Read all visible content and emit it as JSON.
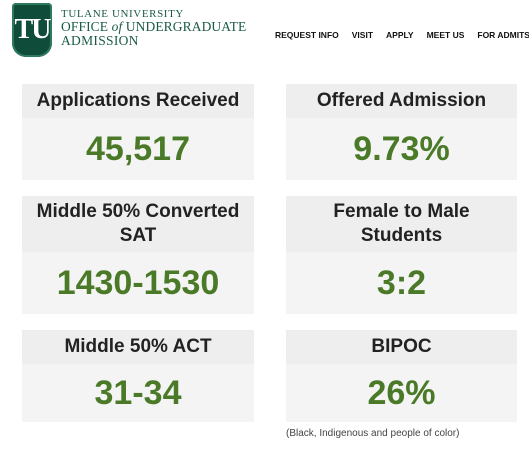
{
  "header": {
    "logo_monogram": "TU",
    "university": "TULANE UNIVERSITY",
    "office_prefix": "OFFICE ",
    "office_of": "of",
    "office_suffix": " UNDERGRADUATE",
    "admission": "ADMISSION"
  },
  "nav": {
    "items": [
      "REQUEST INFO",
      "VISIT",
      "APPLY",
      "MEET US",
      "FOR ADMITS"
    ]
  },
  "stats": [
    {
      "title": "Applications Received",
      "value": "45,517"
    },
    {
      "title": "Offered Admission",
      "value": "9.73%"
    },
    {
      "title": "Middle 50% Converted SAT",
      "value": "1430-1530"
    },
    {
      "title": "Female to Male Students",
      "value": "3:2"
    },
    {
      "title": "Middle 50% ACT",
      "value": "31-34"
    },
    {
      "title": "BIPOC",
      "value": "26%"
    }
  ],
  "bipoc_note": "(Black, Indigenous and people of color)",
  "colors": {
    "brand_green": "#1a5c43",
    "value_green": "#4a7a27",
    "card_bg": "#eeeeee"
  }
}
